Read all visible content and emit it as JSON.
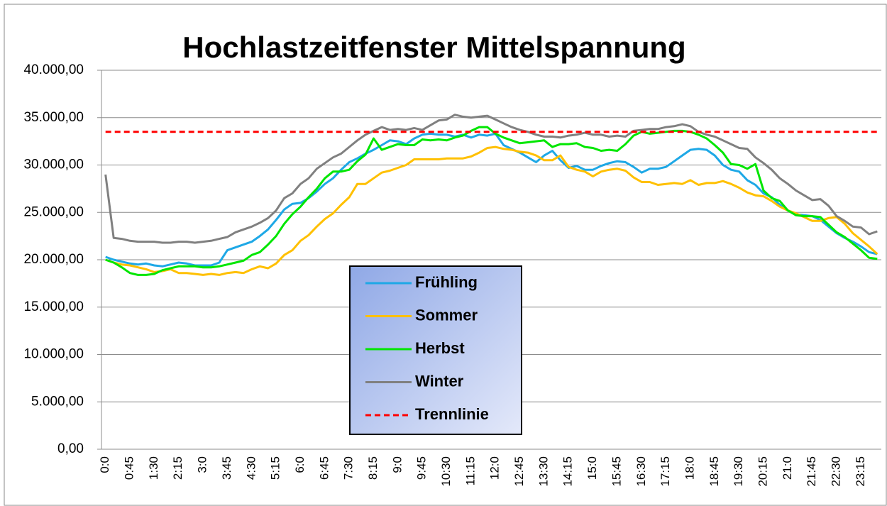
{
  "chart_data": {
    "type": "line",
    "title": "Hochlastzeitfenster Mittelspannung",
    "categories": [
      "0:0",
      null,
      null,
      "0:45",
      null,
      null,
      "1:30",
      null,
      null,
      "2:15",
      null,
      null,
      "3:0",
      null,
      null,
      "3:45",
      null,
      null,
      "4:30",
      null,
      null,
      "5:15",
      null,
      null,
      "6:0",
      null,
      null,
      "6:45",
      null,
      null,
      "7:30",
      null,
      null,
      "8:15",
      null,
      null,
      "9:0",
      null,
      null,
      "9:45",
      null,
      null,
      "10:30",
      null,
      null,
      "11:15",
      null,
      null,
      "12:0",
      null,
      null,
      "12:45",
      null,
      null,
      "13:30",
      null,
      null,
      "14:15",
      null,
      null,
      "15:0",
      null,
      null,
      "15:45",
      null,
      null,
      "16:30",
      null,
      null,
      "17:15",
      null,
      null,
      "18:0",
      null,
      null,
      "18:45",
      null,
      null,
      "19:30",
      null,
      null,
      "20:15",
      null,
      null,
      "21:0",
      null,
      null,
      "21:45",
      null,
      null,
      "22:30",
      null,
      null,
      "23:15",
      null,
      null
    ],
    "ylim": [
      0,
      40000
    ],
    "yticks": [
      {
        "value": 0,
        "label": "0,00"
      },
      {
        "value": 5000,
        "label": "5.000,00"
      },
      {
        "value": 10000,
        "label": "10.000,00"
      },
      {
        "value": 15000,
        "label": "15.000,00"
      },
      {
        "value": 20000,
        "label": "20.000,00"
      },
      {
        "value": 25000,
        "label": "25.000,00"
      },
      {
        "value": 30000,
        "label": "30.000,00"
      },
      {
        "value": 35000,
        "label": "35.000,00"
      },
      {
        "value": 40000,
        "label": "40.000,00"
      }
    ],
    "grid": true,
    "series": [
      {
        "name": "Frühling",
        "color": "#1ea8e6",
        "values": [
          20300,
          20000,
          19800,
          19600,
          19500,
          19600,
          19400,
          19300,
          19500,
          19700,
          19600,
          19400,
          19400,
          19400,
          19700,
          21000,
          21300,
          21600,
          21900,
          22500,
          23200,
          24200,
          25300,
          25900,
          26000,
          26500,
          27200,
          28000,
          28600,
          29500,
          30300,
          30700,
          31200,
          31600,
          32100,
          32600,
          32500,
          32200,
          32800,
          33200,
          33300,
          33200,
          33200,
          33000,
          33200,
          32900,
          33200,
          33100,
          33300,
          32100,
          31700,
          31300,
          30800,
          30300,
          31000,
          31500,
          30500,
          29700,
          29900,
          29500,
          29500,
          29900,
          30200,
          30400,
          30300,
          29800,
          29200,
          29600,
          29600,
          29800,
          30400,
          31000,
          31600,
          31700,
          31600,
          31000,
          30000,
          29500,
          29300,
          28400,
          27900,
          27000,
          26600,
          25800,
          25200,
          24800,
          24700,
          24600,
          24200,
          23500,
          22800,
          22300,
          21900,
          21400,
          20800,
          20600
        ]
      },
      {
        "name": "Sommer",
        "color": "#ffc000",
        "values": [
          20000,
          19700,
          19500,
          19400,
          19200,
          19000,
          18700,
          18800,
          19000,
          18600,
          18600,
          18500,
          18400,
          18500,
          18400,
          18600,
          18700,
          18600,
          19000,
          19300,
          19100,
          19600,
          20500,
          21000,
          22000,
          22600,
          23500,
          24300,
          24900,
          25800,
          26600,
          28000,
          28000,
          28600,
          29200,
          29400,
          29700,
          30000,
          30600,
          30600,
          30600,
          30600,
          30700,
          30700,
          30700,
          30900,
          31300,
          31800,
          31900,
          31700,
          31600,
          31400,
          31300,
          31000,
          30500,
          30500,
          31000,
          29800,
          29500,
          29300,
          28800,
          29300,
          29500,
          29600,
          29400,
          28700,
          28200,
          28200,
          27900,
          28000,
          28100,
          28000,
          28400,
          27900,
          28100,
          28100,
          28300,
          28000,
          27600,
          27100,
          26800,
          26700,
          26200,
          25600,
          25200,
          24900,
          24500,
          24100,
          24100,
          24400,
          24500,
          23800,
          22800,
          22100,
          21400,
          20600
        ]
      },
      {
        "name": "Herbst",
        "color": "#00e600",
        "values": [
          20000,
          19700,
          19200,
          18600,
          18400,
          18400,
          18500,
          18900,
          19100,
          19300,
          19300,
          19300,
          19200,
          19200,
          19300,
          19500,
          19700,
          19900,
          20500,
          20800,
          21600,
          22500,
          23800,
          24800,
          25600,
          26600,
          27500,
          28600,
          29300,
          29300,
          29500,
          30400,
          31100,
          32800,
          31600,
          31900,
          32200,
          32100,
          32100,
          32700,
          32600,
          32700,
          32600,
          32900,
          33100,
          33600,
          34000,
          34000,
          33300,
          32900,
          32600,
          32300,
          32400,
          32500,
          32600,
          31900,
          32200,
          32200,
          32300,
          31900,
          31800,
          31500,
          31600,
          31500,
          32200,
          33100,
          33500,
          33300,
          33400,
          33500,
          33600,
          33600,
          33500,
          33200,
          32800,
          32100,
          31300,
          30100,
          30000,
          29600,
          30100,
          27300,
          26500,
          26200,
          25200,
          24700,
          24600,
          24600,
          24500,
          23700,
          22900,
          22400,
          21700,
          21000,
          20200,
          20100
        ]
      },
      {
        "name": "Winter",
        "color": "#808080",
        "values": [
          29000,
          22300,
          22200,
          22000,
          21900,
          21900,
          21900,
          21800,
          21800,
          21900,
          21900,
          21800,
          21900,
          22000,
          22200,
          22400,
          22900,
          23200,
          23500,
          23900,
          24400,
          25200,
          26500,
          27000,
          28000,
          28600,
          29600,
          30200,
          30800,
          31200,
          31900,
          32600,
          33200,
          33600,
          34000,
          33700,
          33800,
          33700,
          33900,
          33700,
          34200,
          34700,
          34800,
          35300,
          35100,
          35000,
          35100,
          35200,
          34800,
          34400,
          34000,
          33700,
          33500,
          33200,
          33000,
          33000,
          32900,
          33100,
          33200,
          33400,
          33200,
          33200,
          33000,
          33100,
          33000,
          33600,
          33700,
          33800,
          33800,
          34000,
          34100,
          34300,
          34100,
          33500,
          33200,
          33000,
          32600,
          32200,
          31800,
          31700,
          30800,
          30200,
          29500,
          28600,
          28000,
          27300,
          26800,
          26300,
          26400,
          25700,
          24600,
          24100,
          23500,
          23400,
          22700,
          23000
        ]
      },
      {
        "name": "Trennlinie",
        "color": "#ff0000",
        "dashed": true,
        "values": [
          33500,
          33500,
          33500,
          33500,
          33500,
          33500,
          33500,
          33500,
          33500,
          33500,
          33500,
          33500,
          33500,
          33500,
          33500,
          33500,
          33500,
          33500,
          33500,
          33500,
          33500,
          33500,
          33500,
          33500,
          33500,
          33500,
          33500,
          33500,
          33500,
          33500,
          33500,
          33500,
          33500,
          33500,
          33500,
          33500,
          33500,
          33500,
          33500,
          33500,
          33500,
          33500,
          33500,
          33500,
          33500,
          33500,
          33500,
          33500,
          33500,
          33500,
          33500,
          33500,
          33500,
          33500,
          33500,
          33500,
          33500,
          33500,
          33500,
          33500,
          33500,
          33500,
          33500,
          33500,
          33500,
          33500,
          33500,
          33500,
          33500,
          33500,
          33500,
          33500,
          33500,
          33500,
          33500,
          33500,
          33500,
          33500,
          33500,
          33500,
          33500,
          33500,
          33500,
          33500,
          33500,
          33500,
          33500,
          33500,
          33500,
          33500,
          33500,
          33500,
          33500,
          33500,
          33500,
          33500
        ]
      }
    ]
  }
}
